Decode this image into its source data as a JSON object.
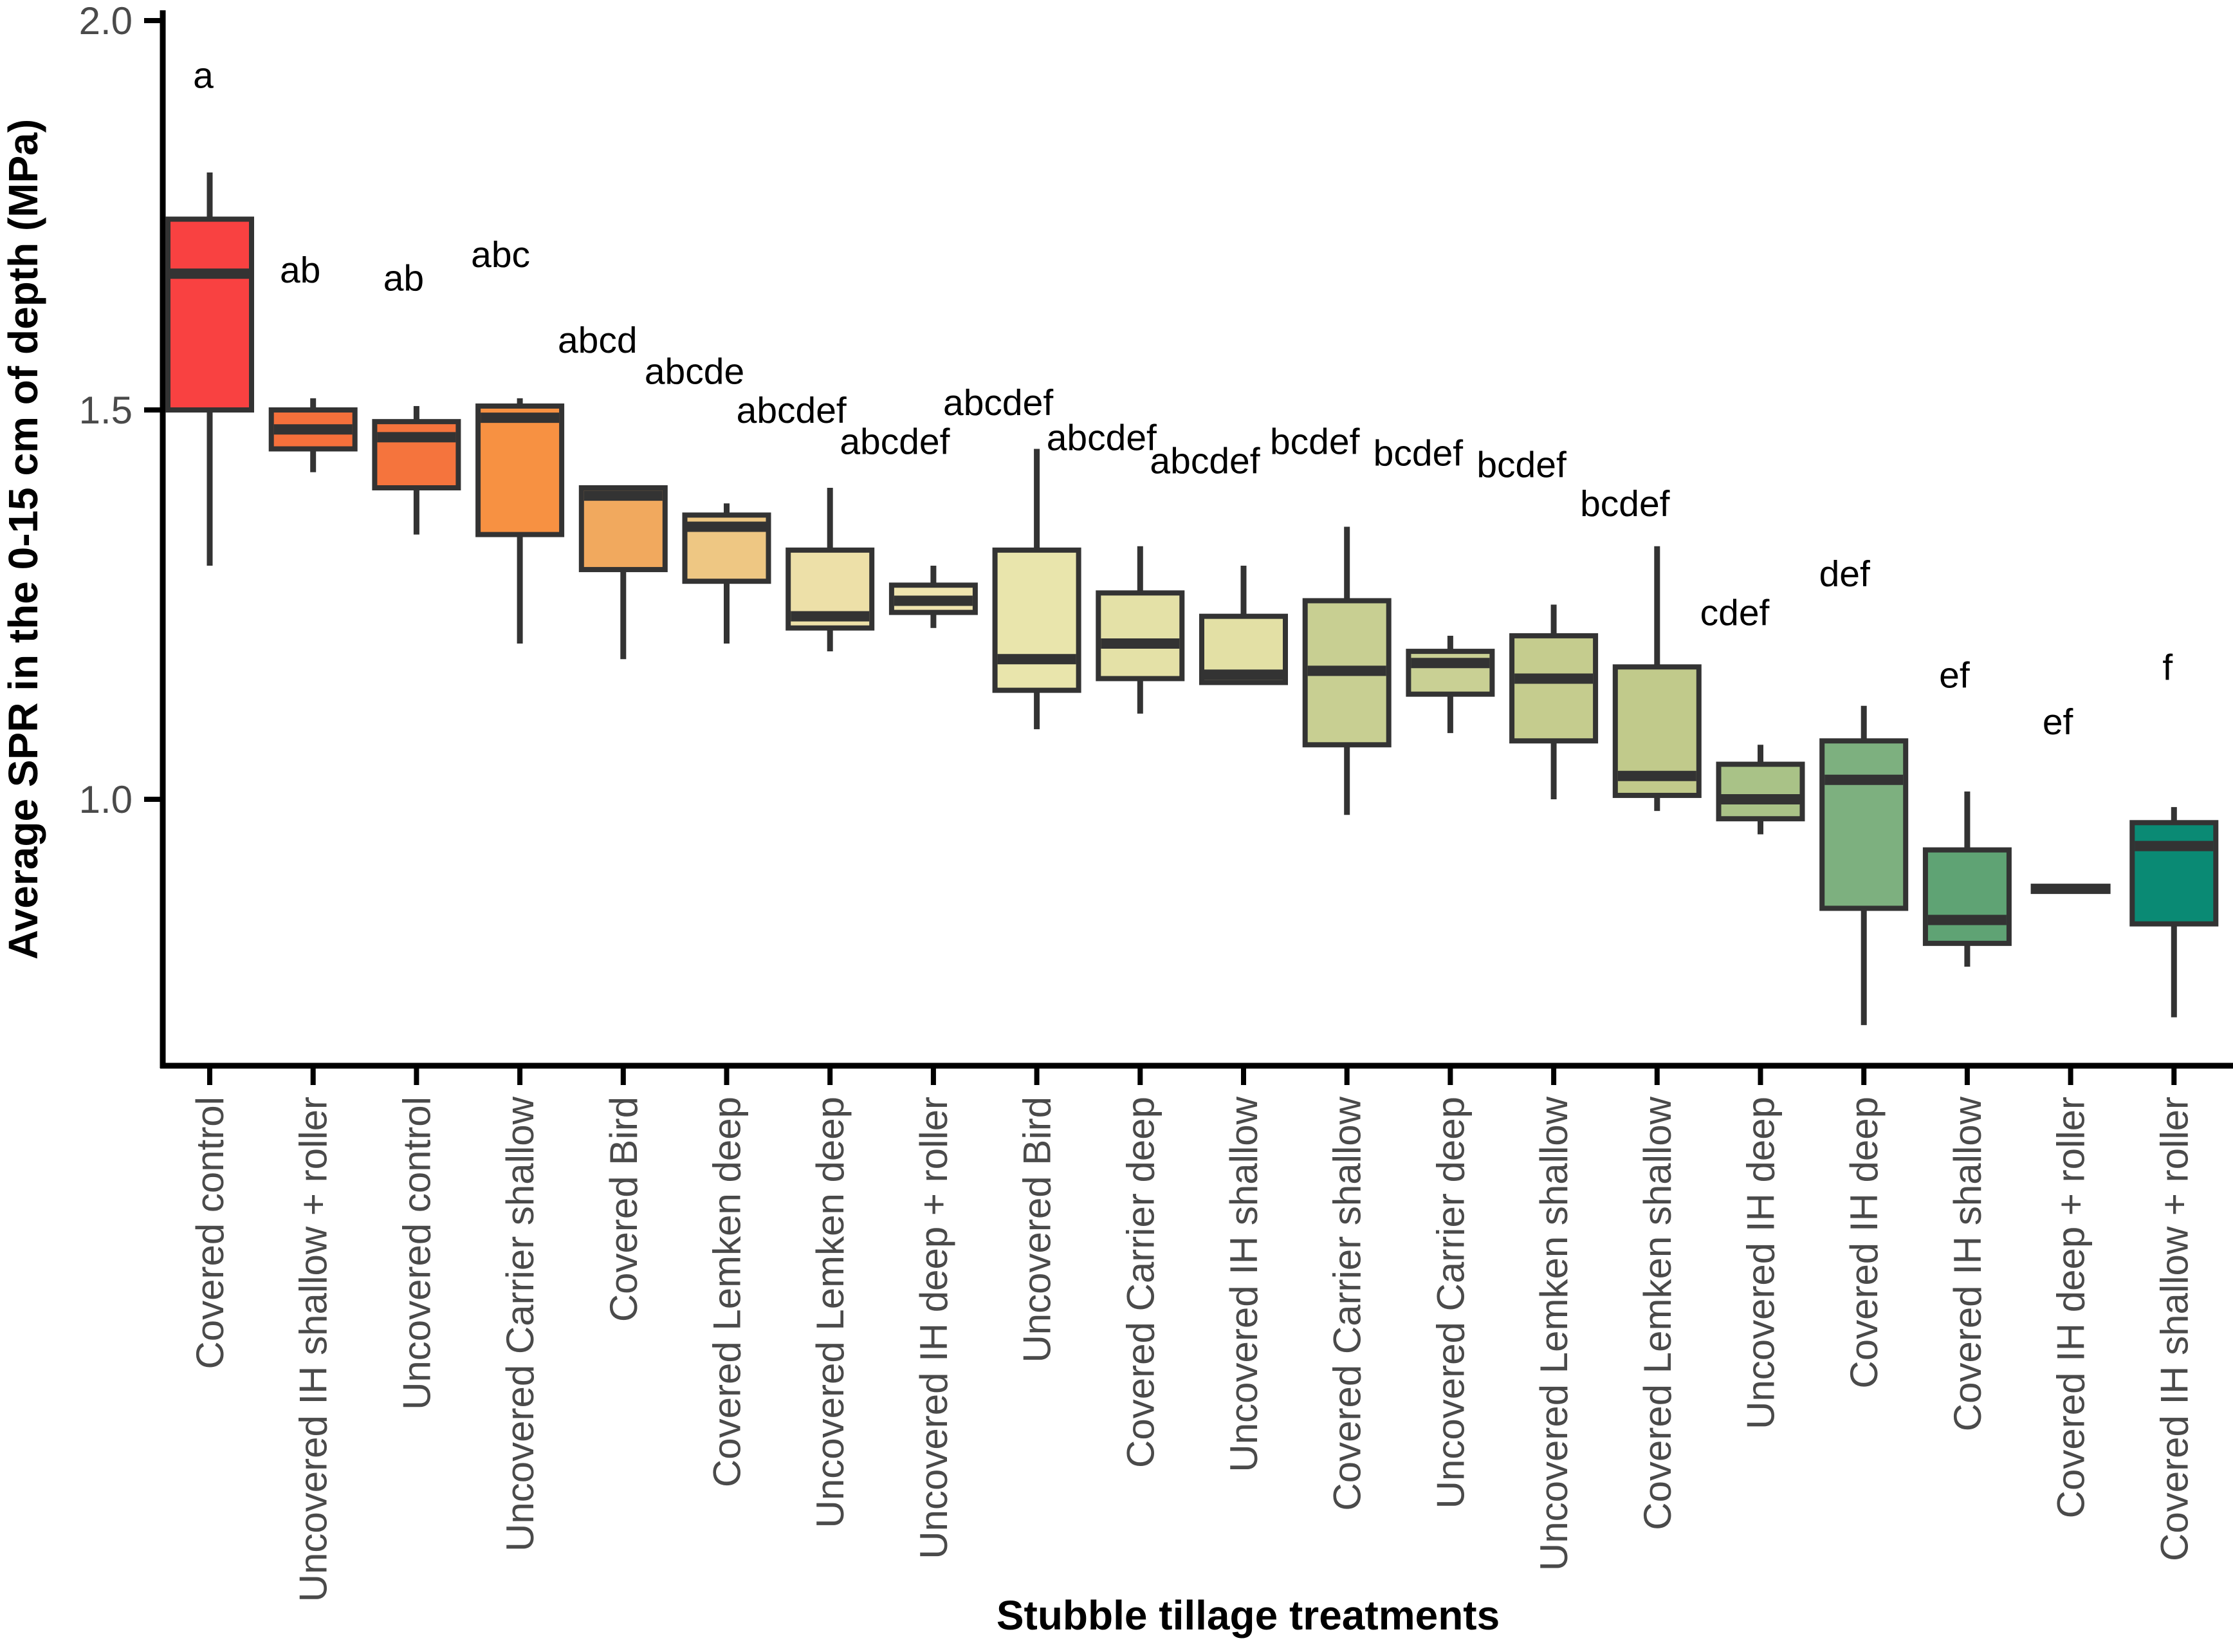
{
  "figure": {
    "background": "#ffffff"
  },
  "styles": {
    "box_border_color": "#333333",
    "axis_color": "#000000",
    "tick_text_color": "#4a4a4a",
    "annotation_color": "#000000"
  },
  "chart_data": {
    "type": "boxplot",
    "orientation": "vertical",
    "title": "",
    "xlabel": "Stubble tillage treatments",
    "ylabel": "Average SPR in the 0-15 cm of depth (MPa)",
    "ylim": [
      0.66,
      2.02
    ],
    "yticks": [
      2.0,
      1.5,
      1.0
    ],
    "ytick_labels": [
      "2.0",
      "1.5",
      "1.0"
    ],
    "grid": false,
    "legend": false,
    "series": [
      {
        "treatment": "Covered control",
        "letter": "a",
        "letter_y": 1.93,
        "color": "#F94141",
        "whisker_low": 1.3,
        "q1": 1.5,
        "median": 1.675,
        "q3": 1.745,
        "whisker_high": 1.805
      },
      {
        "treatment": "Uncovered IH shallow + roller",
        "letter": "ab",
        "letter_y": 1.68,
        "color": "#F5703B",
        "whisker_low": 1.42,
        "q1": 1.45,
        "median": 1.475,
        "q3": 1.5,
        "whisker_high": 1.515
      },
      {
        "treatment": "Uncovered control",
        "letter": "ab",
        "letter_y": 1.67,
        "color": "#F5743D",
        "whisker_low": 1.34,
        "q1": 1.4,
        "median": 1.465,
        "q3": 1.485,
        "whisker_high": 1.505
      },
      {
        "treatment": "Uncovered Carrier shallow",
        "letter": "abc",
        "letter_y": 1.7,
        "color": "#F79142",
        "whisker_low": 1.2,
        "q1": 1.34,
        "median": 1.49,
        "q3": 1.505,
        "whisker_high": 1.515
      },
      {
        "treatment": "Covered Bird",
        "letter": "abcd",
        "letter_y": 1.59,
        "color": "#F1A95E",
        "whisker_low": 1.18,
        "q1": 1.295,
        "median": 1.39,
        "q3": 1.4,
        "whisker_high": 1.4
      },
      {
        "treatment": "Covered Lemken deep",
        "letter": "abcde",
        "letter_y": 1.55,
        "color": "#EEC783",
        "whisker_low": 1.2,
        "q1": 1.28,
        "median": 1.35,
        "q3": 1.365,
        "whisker_high": 1.38
      },
      {
        "treatment": "Uncovered Lemken deep",
        "letter": "abcdef",
        "letter_y": 1.5,
        "color": "#EDE0A8",
        "whisker_low": 1.19,
        "q1": 1.22,
        "median": 1.235,
        "q3": 1.32,
        "whisker_high": 1.4
      },
      {
        "treatment": "Uncovered IH deep + roller",
        "letter": "abcdef",
        "letter_y": 1.46,
        "color": "#EFE4AF",
        "whisker_low": 1.22,
        "q1": 1.24,
        "median": 1.255,
        "q3": 1.275,
        "whisker_high": 1.3
      },
      {
        "treatment": "Uncovered Bird",
        "letter": "abcdef",
        "letter_y": 1.51,
        "color": "#E9E5AC",
        "whisker_low": 1.09,
        "q1": 1.14,
        "median": 1.18,
        "q3": 1.32,
        "whisker_high": 1.45
      },
      {
        "treatment": "Covered Carrier deep",
        "letter": "abcdef",
        "letter_y": 1.465,
        "color": "#E4E1A7",
        "whisker_low": 1.11,
        "q1": 1.155,
        "median": 1.2,
        "q3": 1.265,
        "whisker_high": 1.325
      },
      {
        "treatment": "Uncovered IH shallow",
        "letter": "abcdef",
        "letter_y": 1.435,
        "color": "#E3E0A5",
        "whisker_low": 1.15,
        "q1": 1.15,
        "median": 1.16,
        "q3": 1.235,
        "whisker_high": 1.3
      },
      {
        "treatment": "Covered Carrier shallow",
        "letter": "bcdef",
        "letter_y": 1.46,
        "color": "#C8CF92",
        "whisker_low": 0.98,
        "q1": 1.07,
        "median": 1.165,
        "q3": 1.255,
        "whisker_high": 1.35
      },
      {
        "treatment": "Uncovered Carrier deep",
        "letter": "bcdef",
        "letter_y": 1.445,
        "color": "#C9D094",
        "whisker_low": 1.085,
        "q1": 1.135,
        "median": 1.175,
        "q3": 1.19,
        "whisker_high": 1.21
      },
      {
        "treatment": "Uncovered Lemken shallow",
        "letter": "bcdef",
        "letter_y": 1.43,
        "color": "#C5CC8E",
        "whisker_low": 1.0,
        "q1": 1.075,
        "median": 1.155,
        "q3": 1.21,
        "whisker_high": 1.25
      },
      {
        "treatment": "Covered Lemken shallow",
        "letter": "bcdef",
        "letter_y": 1.38,
        "color": "#C1CA8B",
        "whisker_low": 0.985,
        "q1": 1.005,
        "median": 1.03,
        "q3": 1.17,
        "whisker_high": 1.325
      },
      {
        "treatment": "Uncovered IH deep",
        "letter": "cdef",
        "letter_y": 1.24,
        "color": "#A9C287",
        "whisker_low": 0.955,
        "q1": 0.975,
        "median": 1.0,
        "q3": 1.045,
        "whisker_high": 1.07
      },
      {
        "treatment": "Covered IH deep",
        "letter": "def",
        "letter_y": 1.29,
        "color": "#7DB07F",
        "whisker_low": 0.71,
        "q1": 0.86,
        "median": 1.025,
        "q3": 1.075,
        "whisker_high": 1.12
      },
      {
        "treatment": "Covered IH shallow",
        "letter": "ef",
        "letter_y": 1.16,
        "color": "#5FA374",
        "whisker_low": 0.785,
        "q1": 0.815,
        "median": 0.845,
        "q3": 0.935,
        "whisker_high": 1.01
      },
      {
        "treatment": "Covered IH deep + roller",
        "letter": "ef",
        "letter_y": 1.1,
        "color": "#38916A",
        "whisker_low": 0.885,
        "q1": 0.885,
        "median": 0.885,
        "q3": 0.885,
        "whisker_high": 0.885
      },
      {
        "treatment": "Covered IH shallow + roller",
        "letter": "f",
        "letter_y": 1.17,
        "color": "#0A8A74",
        "whisker_low": 0.72,
        "q1": 0.84,
        "median": 0.94,
        "q3": 0.97,
        "whisker_high": 0.99
      }
    ]
  }
}
